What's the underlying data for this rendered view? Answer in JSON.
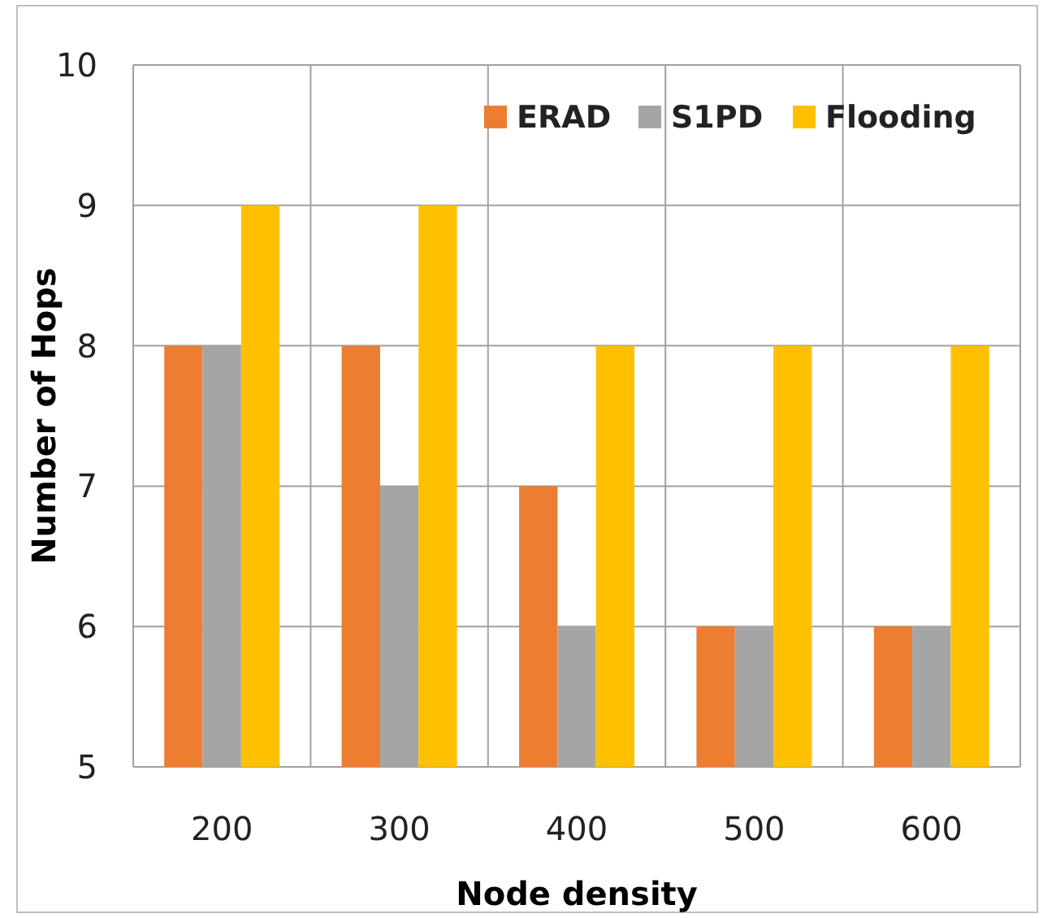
{
  "chart_data": {
    "type": "bar",
    "xlabel": "Node density",
    "ylabel": "Number of Hops",
    "categories": [
      "200",
      "300",
      "400",
      "500",
      "600"
    ],
    "series": [
      {
        "name": "ERAD",
        "color": "#ed7d31",
        "values": [
          8,
          8,
          7,
          6,
          6
        ]
      },
      {
        "name": "S1PD",
        "color": "#a5a5a5",
        "values": [
          8,
          7,
          6,
          6,
          6
        ]
      },
      {
        "name": "Flooding",
        "color": "#ffc000",
        "values": [
          9,
          9,
          8,
          8,
          8
        ]
      }
    ],
    "ylim": [
      5,
      10
    ],
    "yticks": [
      5,
      6,
      7,
      8,
      9,
      10
    ],
    "grid": true,
    "legend": "top right"
  }
}
